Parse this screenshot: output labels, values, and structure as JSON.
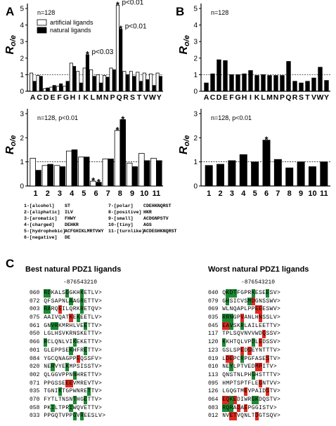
{
  "panel_labels": {
    "a": "A",
    "b": "B",
    "c": "C"
  },
  "chart_data": [
    {
      "id": "A-top",
      "type": "bar",
      "annotation_n": "n=128",
      "ylabel_base": "R",
      "ylabel_sub": "o/e",
      "ylim": [
        0,
        5.3
      ],
      "yticks": [
        "0",
        "1",
        "2",
        "3",
        "4",
        "5"
      ],
      "reference_line": 1,
      "categories": [
        "A",
        "C",
        "D",
        "E",
        "F",
        "G",
        "H",
        "I",
        "K",
        "L",
        "M",
        "N",
        "P",
        "Q",
        "R",
        "S",
        "T",
        "V",
        "W",
        "Y"
      ],
      "series": [
        {
          "name": "artificial ligands",
          "fill": "#ffffff",
          "values": [
            1.1,
            0.95,
            0.15,
            0.25,
            0.3,
            0.3,
            1.7,
            1.2,
            1.4,
            1.3,
            1.0,
            0.95,
            1.4,
            5.2,
            1.2,
            1.2,
            1.15,
            1.1,
            1.05,
            1.1
          ]
        },
        {
          "name": "natural ligands",
          "fill": "#000000",
          "values": [
            0.6,
            0.9,
            0.2,
            0.35,
            0.45,
            0.6,
            1.5,
            0.5,
            2.2,
            0.9,
            0.5,
            0.85,
            1.3,
            3.75,
            1.0,
            0.9,
            0.6,
            0.7,
            0.35,
            0.9
          ]
        }
      ],
      "annotations": [
        {
          "category": "K",
          "series": 1,
          "star": "*",
          "text": "p<0.03"
        },
        {
          "category": "Q",
          "series": 0,
          "star": "*",
          "text": "p<0.01"
        },
        {
          "category": "Q",
          "series": 1,
          "star": "*",
          "text": "p<0.01"
        }
      ]
    },
    {
      "id": "B-top",
      "type": "bar",
      "annotation_n": "n=128",
      "ylabel_base": "R",
      "ylabel_sub": "o/e",
      "ylim": [
        0,
        5.3
      ],
      "yticks": [
        "0",
        "1",
        "2",
        "3",
        "4",
        "5"
      ],
      "reference_line": 1,
      "categories": [
        "A",
        "C",
        "D",
        "E",
        "F",
        "G",
        "H",
        "I",
        "K",
        "L",
        "M",
        "N",
        "P",
        "Q",
        "R",
        "S",
        "T",
        "V",
        "W",
        "Y"
      ],
      "series": [
        {
          "fill": "#000000",
          "values": [
            0.5,
            1.05,
            1.9,
            1.85,
            1.0,
            1.0,
            1.05,
            1.25,
            0.95,
            1.0,
            0.95,
            0.95,
            0.95,
            1.8,
            0.6,
            0.5,
            0.6,
            0.8,
            1.45,
            0.65
          ]
        }
      ]
    },
    {
      "id": "A-bottom",
      "type": "bar",
      "annotation_n": "n=128, p<0.01",
      "ylabel_base": "R",
      "ylabel_sub": "o/e",
      "ylim": [
        0,
        3.2
      ],
      "yticks": [
        "0",
        "1",
        "2",
        "3"
      ],
      "reference_line": 1,
      "categories": [
        "1",
        "2",
        "3",
        "4",
        "5",
        "6",
        "7",
        "8",
        "9",
        "10",
        "11"
      ],
      "series": [
        {
          "fill": "#ffffff",
          "values": [
            1.15,
            0.85,
            0.85,
            1.45,
            1.2,
            0.2,
            1.12,
            2.3,
            0.95,
            1.35,
            1.15
          ]
        },
        {
          "fill": "#000000",
          "values": [
            0.65,
            0.9,
            0.8,
            1.5,
            1.2,
            0.15,
            1.12,
            2.75,
            0.8,
            1.05,
            1.05
          ]
        }
      ],
      "annotations": [
        {
          "category": "6",
          "series": 0,
          "star": "*"
        },
        {
          "category": "6",
          "series": 1,
          "star": "*"
        },
        {
          "category": "8",
          "series": 0,
          "star": "*"
        },
        {
          "category": "8",
          "series": 1,
          "star": "*"
        }
      ]
    },
    {
      "id": "B-bottom",
      "type": "bar",
      "annotation_n": "n=128, p<0.01",
      "ylabel_base": "R",
      "ylabel_sub": "o/e",
      "ylim": [
        0,
        3.2
      ],
      "yticks": [
        "0",
        "1",
        "2",
        "3"
      ],
      "reference_line": 1,
      "categories": [
        "1",
        "2",
        "3",
        "4",
        "5",
        "6",
        "7",
        "8",
        "9",
        "10",
        "11"
      ],
      "series": [
        {
          "fill": "#000000",
          "values": [
            0.85,
            0.9,
            1.05,
            1.3,
            1.0,
            1.9,
            1.1,
            0.75,
            1.0,
            0.8,
            1.0
          ]
        }
      ],
      "annotations": [
        {
          "category": "6",
          "series": 0,
          "star": "*"
        }
      ]
    }
  ],
  "category_key": [
    {
      "left": "1-[alcohol]",
      "left_set": "ST",
      "right": "7-[polar]",
      "right_set": "CDEHKNQRST"
    },
    {
      "left": "2-[aliphatic]",
      "left_set": "ILV",
      "right": "8-[positive]",
      "right_set": "HKR"
    },
    {
      "left": "3-[aromatic]",
      "left_set": "FHWY",
      "right": "9-[small]",
      "right_set": "ACDGNPSTV"
    },
    {
      "left": "4-[charged]",
      "left_set": "DEHKR",
      "right": "10-[tiny]",
      "right_set": "AGS"
    },
    {
      "left": "5-[hydrophobic]",
      "left_set": "ACFGHIKLMRTVWY",
      "right": "11-[turnlike]",
      "right_set": "ACDEGHKNQRST"
    },
    {
      "left": "6-[negative]",
      "left_set": "DE",
      "right": "",
      "right_set": ""
    }
  ],
  "panel_c": {
    "best_title": "Best natural PDZ1 ligands",
    "worst_title": "Worst natural PDZ1 ligands",
    "position_header": "-876543210",
    "best": [
      {
        "id": "060",
        "seq": "RDKALSGGKHKETLV>",
        "colors": "gg....g...g....."
      },
      {
        "id": "072",
        "seq": "QFSAPNLAAGRETTV>",
        "colors": ".......g..g....."
      },
      {
        "id": "003",
        "seq": "RARQEILQRKRETQV>",
        "colors": "gg..r.....g....."
      },
      {
        "id": "075",
        "seq": "AAIVQATKEKEETLV>",
        "colors": ".......r.g......"
      },
      {
        "id": "061",
        "seq": "GNVRKMRHLVEETTV>",
        "colors": "..gg.......g...."
      },
      {
        "id": "050",
        "seq": "LGLHSVKRNSKETTV>",
        "colors": "................"
      },
      {
        "id": "066",
        "seq": "RCLQNLVIKEKETTV>",
        "colors": "g.......g......."
      },
      {
        "id": "001",
        "seq": "GLEPPSEKHFRETTV>",
        "colors": ".......g...g...."
      },
      {
        "id": "084",
        "seq": "YGCQNAGPPEQSSFV>",
        "colors": ".........r......"
      },
      {
        "id": "020",
        "seq": "NERVYEKMPSISSTV>",
        "colors": "..g...g........."
      },
      {
        "id": "002",
        "seq": "QLGGVPPNNHRETTV>",
        "colors": "........g......."
      },
      {
        "id": "071",
        "seq": "PPGSSEEEVMREVTV>",
        "colors": "......rr........"
      },
      {
        "id": "035",
        "seq": "TGNIKTGPWNRETTV>",
        "colors": "....g.......g..."
      },
      {
        "id": "070",
        "seq": "FYTLTNSNTHGETTV>",
        "colors": "........g..g...."
      },
      {
        "id": "058",
        "seq": "PKILTPRIWQVETTV>",
        "colors": "..g....g........"
      },
      {
        "id": "033",
        "seq": "PPGQTVPPGVREESLV>",
        "colors": "........g.g....."
      }
    ],
    "worst": [
      {
        "id": "040",
        "seq": "QKDTFGPRKESEESV>",
        "colors": ".ggg....g...g..."
      },
      {
        "id": "079",
        "seq": "GHSICVSMDGNSSWV>",
        "colors": ".g.....gr......."
      },
      {
        "id": "069",
        "seq": "WLNQAPLPPEEESWV>",
        "colors": ".........rr....."
      },
      {
        "id": "035",
        "seq": "RRNGPVANLHNSSLV>",
        "colors": "ggg..r....r....."
      },
      {
        "id": "045",
        "seq": "EAVSKRLAILEETTV>",
        "colors": "rrg..g.........."
      },
      {
        "id": "117",
        "seq": "TPLSQVNVVWDQSSV>",
        "colors": "...........r...."
      },
      {
        "id": "120",
        "seq": "KKHTQLVPDLEDSSV>",
        "colors": "g.......g.r....."
      },
      {
        "id": "123",
        "seq": "GSLSPEDSEYNTTTV>",
        "colors": ".....r.r........"
      },
      {
        "id": "019",
        "seq": "LDEPCRPGFASESTV>",
        "colors": ".rr..g......r..."
      },
      {
        "id": "010",
        "seq": "NEYLPTVEDMPITV>",
        "colors": "..g......rr....."
      },
      {
        "id": "113",
        "seq": "QNSTNLPHGHSTTTV>",
        "colors": "........g......."
      },
      {
        "id": "095",
        "seq": "HMPTSPTFLEGNTVV>",
        "colors": "..........r....."
      },
      {
        "id": "126",
        "seq": "LGQGTMEVPAIDSTV>",
        "colors": "......r.....r..."
      },
      {
        "id": "064",
        "seq": "EQKEDIWRGKDQSTV>",
        "colors": "rrgr....gg......"
      },
      {
        "id": "083",
        "quot": "",
        "seq": "RQRADAEPGGISTV>",
        "colors": "ggg.r.r........."
      },
      {
        "id": "012",
        "seq": "NVETVQNLTDGTSQV>",
        "colors": "..rr.....r......"
      }
    ]
  },
  "colors": {
    "green": "#1e8a34",
    "red": "#e02a1f",
    "black": "#000000"
  }
}
